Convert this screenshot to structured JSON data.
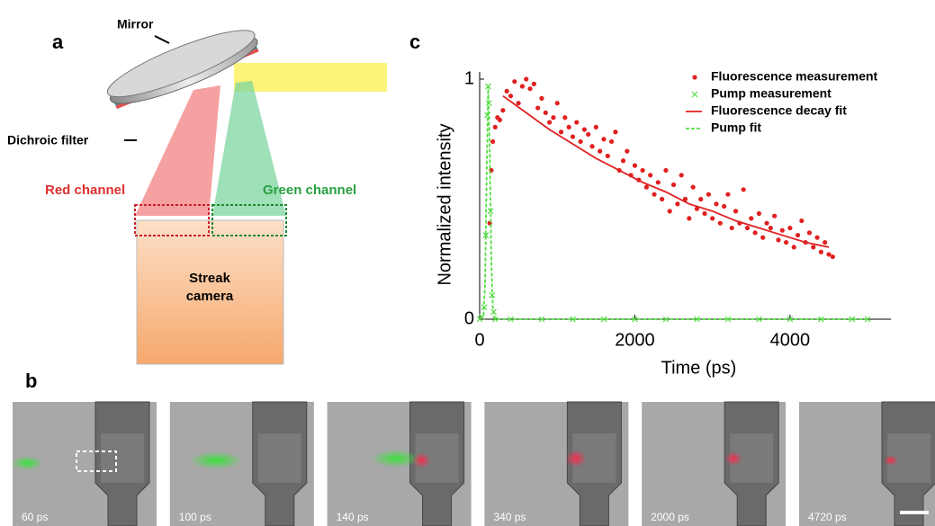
{
  "panel_a": {
    "label": "a",
    "mirror": "Mirror",
    "filter": "Dichroic filter",
    "red_channel": "Red channel",
    "green_channel": "Green channel",
    "camera": [
      "Streak",
      "camera"
    ]
  },
  "chart_data": {
    "type": "scatter",
    "panel_label": "c",
    "x_label": "Time (ps)",
    "y_label": "Normalized intensity",
    "xlim": [
      0,
      5300
    ],
    "ylim": [
      0,
      1.03
    ],
    "xticks": [
      0,
      2000,
      4000
    ],
    "yticks": [
      0,
      1
    ],
    "series": [
      {
        "name": "Fluorescence measurement",
        "color": "#e02020",
        "style": "dot",
        "x": [
          130,
          150,
          170,
          200,
          230,
          260,
          300,
          350,
          400,
          450,
          500,
          550,
          600,
          650,
          700,
          750,
          800,
          850,
          900,
          950,
          1000,
          1050,
          1100,
          1150,
          1200,
          1250,
          1300,
          1350,
          1400,
          1450,
          1500,
          1550,
          1600,
          1650,
          1700,
          1750,
          1800,
          1850,
          1900,
          1950,
          2000,
          2050,
          2100,
          2150,
          2200,
          2250,
          2300,
          2350,
          2400,
          2450,
          2500,
          2550,
          2600,
          2650,
          2700,
          2750,
          2800,
          2850,
          2900,
          2950,
          3000,
          3050,
          3100,
          3150,
          3200,
          3250,
          3300,
          3350,
          3400,
          3450,
          3500,
          3550,
          3600,
          3650,
          3700,
          3750,
          3800,
          3850,
          3900,
          3950,
          4000,
          4050,
          4100,
          4150,
          4200,
          4250,
          4300,
          4350,
          4400,
          4450,
          4500,
          4550
        ],
        "values": [
          0.4,
          0.62,
          0.74,
          0.8,
          0.84,
          0.83,
          0.87,
          0.95,
          0.93,
          0.99,
          0.9,
          0.97,
          1.0,
          0.96,
          0.98,
          0.88,
          0.92,
          0.86,
          0.82,
          0.84,
          0.9,
          0.78,
          0.84,
          0.8,
          0.76,
          0.82,
          0.74,
          0.79,
          0.77,
          0.72,
          0.8,
          0.7,
          0.75,
          0.68,
          0.74,
          0.78,
          0.62,
          0.66,
          0.7,
          0.6,
          0.64,
          0.58,
          0.62,
          0.55,
          0.6,
          0.52,
          0.57,
          0.5,
          0.62,
          0.45,
          0.56,
          0.48,
          0.6,
          0.5,
          0.42,
          0.55,
          0.46,
          0.5,
          0.44,
          0.52,
          0.42,
          0.48,
          0.4,
          0.47,
          0.52,
          0.38,
          0.45,
          0.4,
          0.54,
          0.38,
          0.42,
          0.36,
          0.44,
          0.34,
          0.4,
          0.38,
          0.43,
          0.33,
          0.37,
          0.32,
          0.38,
          0.3,
          0.35,
          0.41,
          0.32,
          0.36,
          0.3,
          0.34,
          0.28,
          0.32,
          0.27,
          0.26
        ]
      },
      {
        "name": "Pump measurement",
        "color": "#55dd44",
        "style": "cross",
        "x": [
          0,
          30,
          60,
          80,
          100,
          110,
          120,
          140,
          160,
          180,
          200,
          400,
          800,
          1200,
          1600,
          2000,
          2400,
          2800,
          3200,
          3600,
          4000,
          4400,
          4800,
          5000
        ],
        "values": [
          0,
          0.01,
          0.05,
          0.35,
          0.85,
          0.97,
          0.9,
          0.45,
          0.1,
          0.03,
          0,
          0,
          0,
          0,
          0,
          0,
          0,
          0,
          0,
          0,
          0,
          0,
          0,
          0
        ]
      },
      {
        "name": "Fluorescence decay fit",
        "color": "#e02020",
        "style": "line",
        "x": [
          300,
          600,
          900,
          1200,
          1500,
          1800,
          2100,
          2400,
          2700,
          3000,
          3300,
          3600,
          3900,
          4200,
          4500
        ],
        "values": [
          0.93,
          0.86,
          0.79,
          0.73,
          0.67,
          0.62,
          0.57,
          0.53,
          0.48,
          0.45,
          0.41,
          0.38,
          0.35,
          0.32,
          0.3
        ]
      },
      {
        "name": "Pump fit",
        "color": "#55dd44",
        "style": "dash",
        "x": [
          0,
          50,
          70,
          90,
          110,
          130,
          150,
          170,
          200,
          5000
        ],
        "values": [
          0,
          0.02,
          0.15,
          0.6,
          0.97,
          0.7,
          0.25,
          0.05,
          0,
          0
        ]
      }
    ]
  },
  "panel_b": {
    "label": "b",
    "frames": [
      "60 ps",
      "100 ps",
      "140 ps",
      "340 ps",
      "2000 ps",
      "4720 ps"
    ]
  }
}
